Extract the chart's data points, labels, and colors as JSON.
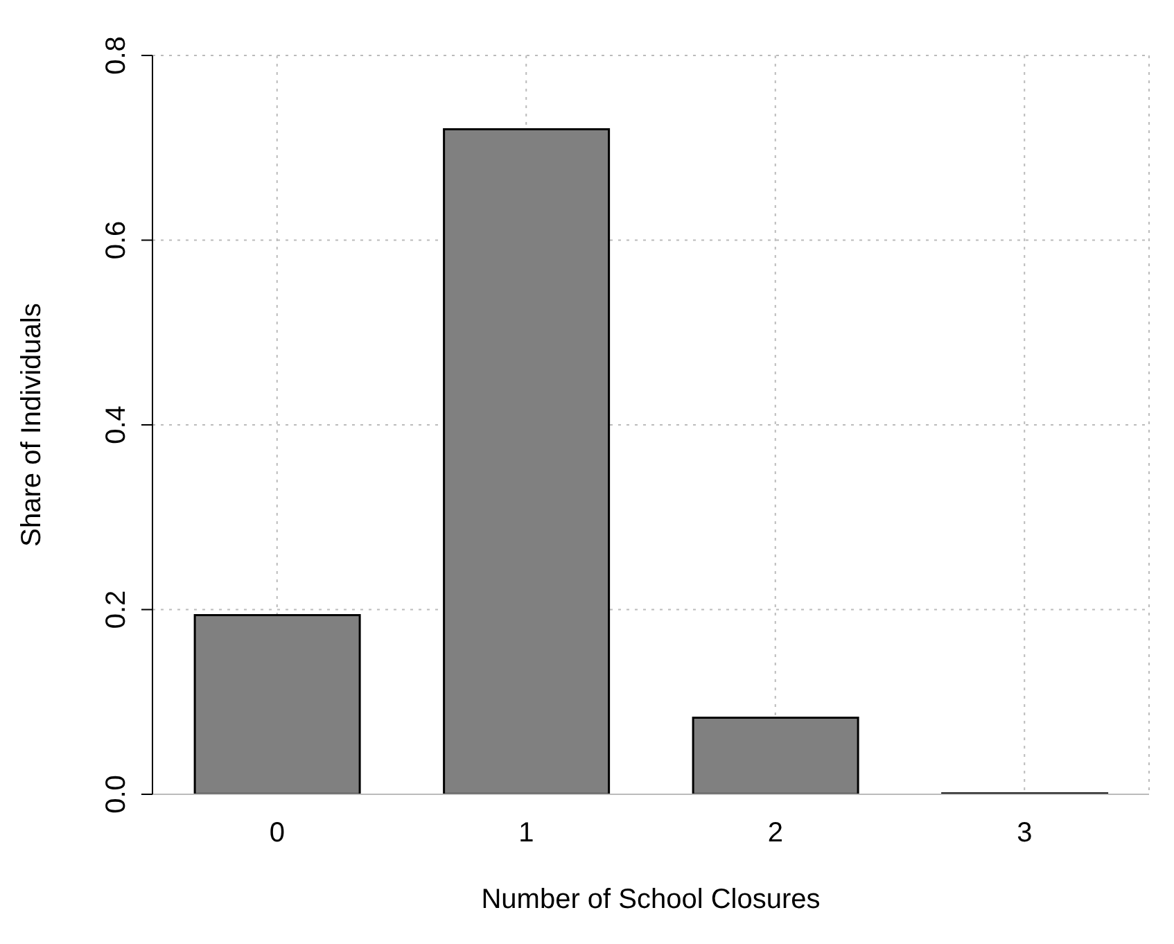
{
  "chart_data": {
    "type": "bar",
    "xlabel": "Number of School Closures",
    "ylabel": "Share of Individuals",
    "categories": [
      "0",
      "1",
      "2",
      "3"
    ],
    "values": [
      0.194,
      0.72,
      0.083,
      0.001
    ],
    "color": "#808080",
    "ylim": [
      0,
      0.8
    ],
    "yticks": [
      {
        "value": 0,
        "label": "0.0"
      },
      0.2,
      0.4,
      0.6,
      0.8
    ],
    "grid": true
  }
}
